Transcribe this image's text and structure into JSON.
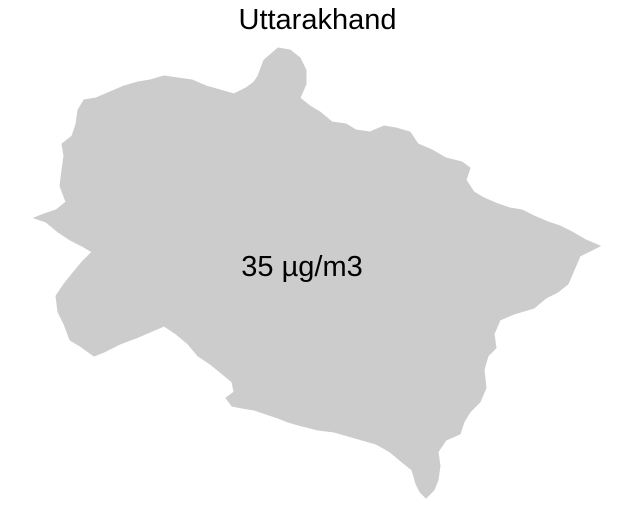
{
  "map": {
    "title": "Uttarakhand",
    "region": {
      "name": "Uttarakhand",
      "value_label": "35 µg/m3",
      "fill_color": "#cccccc"
    },
    "background_color": "#ffffff"
  }
}
